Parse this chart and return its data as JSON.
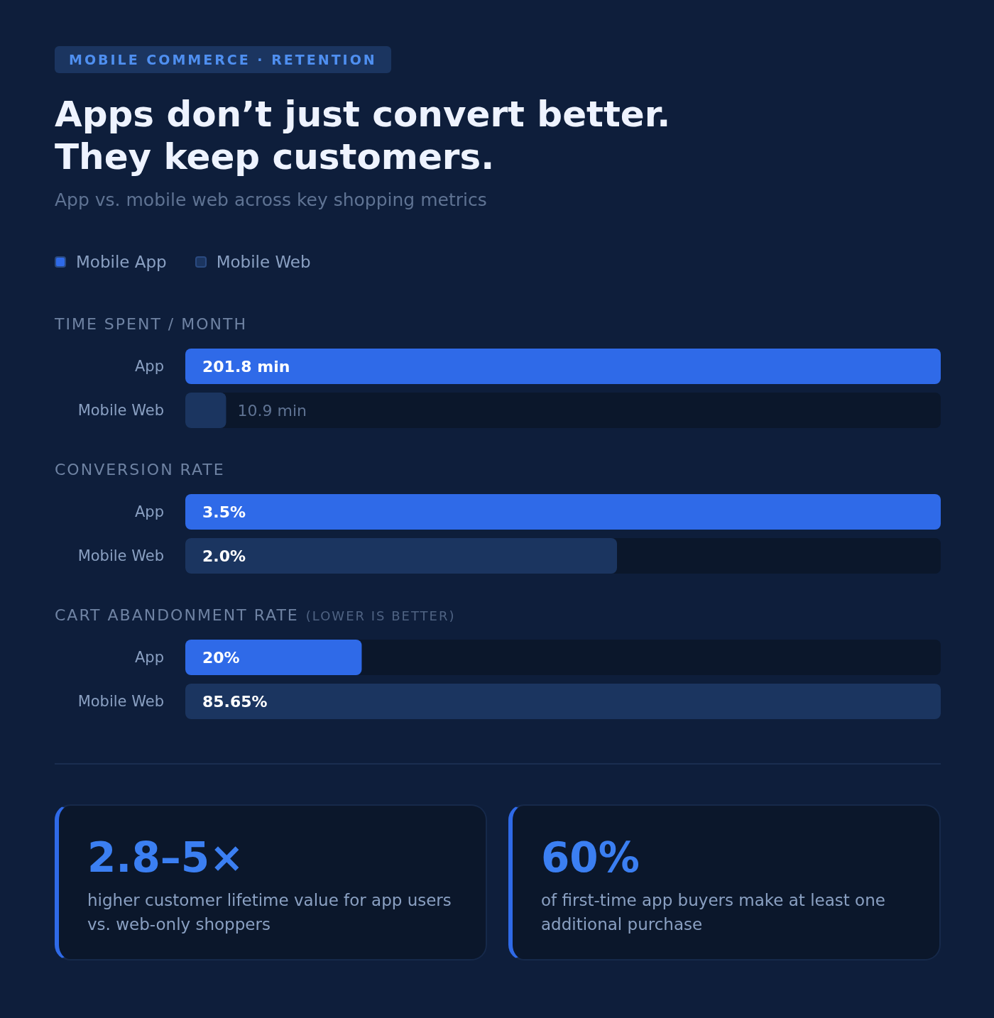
{
  "chart_data": [
    {
      "type": "other",
      "annotations": [
        "MOBILE COMMERCE · RETENTION"
      ],
      "title": "Apps don’t just convert better. They keep customers.",
      "subtitle": "App vs. mobile web across key shopping metrics"
    },
    {
      "type": "bar",
      "orientation": "horizontal",
      "stacked": true,
      "legend": "top left",
      "title": "TIME SPENT / MONTH",
      "categories": [
        "App",
        "Mobile Web"
      ],
      "series": [
        {
          "name": "Mobile App",
          "color": "#2f6ae8",
          "values": [
            201.8,
            null
          ],
          "value_labels": [
            "201.8 min",
            null
          ]
        },
        {
          "name": "Mobile Web",
          "color": "#1b3560",
          "values": [
            null,
            10.9
          ],
          "value_labels": [
            null,
            "10.9 min"
          ]
        }
      ]
    },
    {
      "type": "bar",
      "orientation": "horizontal",
      "stacked": true,
      "title": "CONVERSION RATE",
      "categories": [
        "App",
        "Mobile Web"
      ],
      "series": [
        {
          "color": "#2f6ae8",
          "values": [
            3.5,
            null
          ],
          "value_labels": [
            "3.5%",
            null
          ]
        },
        {
          "color": "#1b3560",
          "values": [
            null,
            2.0
          ],
          "value_labels": [
            null,
            "2.0%"
          ]
        }
      ]
    },
    {
      "type": "bar",
      "orientation": "horizontal",
      "stacked": true,
      "title": "CART ABANDONMENT RATE",
      "subtitle": "(LOWER IS BETTER)",
      "categories": [
        "App",
        "Mobile Web"
      ],
      "series": [
        {
          "color": "#2f6ae8",
          "values": [
            20,
            null
          ],
          "value_labels": [
            "20%",
            null
          ]
        },
        {
          "color": "#1b3560",
          "values": [
            null,
            85.65
          ],
          "value_labels": [
            null,
            "85.65%"
          ]
        }
      ]
    },
    {
      "type": "other",
      "annotations": [
        "2.8–5×",
        "higher customer lifetime value for app users vs. web-only shoppers",
        "60%",
        "of first-time app buyers make at least one additional purchase"
      ]
    }
  ]
}
